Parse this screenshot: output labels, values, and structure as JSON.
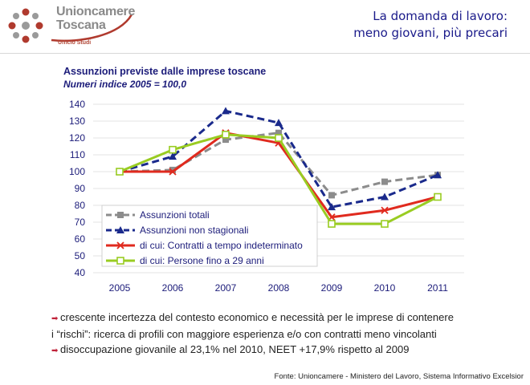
{
  "header": {
    "brand_line1": "Unioncamere",
    "brand_line2": "Toscana",
    "brand_sub": "Ufficio Studi",
    "title_line1": "La domanda di lavoro:",
    "title_line2": "meno giovani, più precari"
  },
  "chart_data": {
    "type": "line",
    "title": "Assunzioni previste dalle imprese toscane",
    "subtitle": "Numeri indice 2005 = 100,0",
    "categories": [
      "2005",
      "2006",
      "2007",
      "2008",
      "2009",
      "2010",
      "2011"
    ],
    "ylim": [
      40,
      140
    ],
    "yticks": [
      140,
      130,
      120,
      110,
      100,
      90,
      80,
      70,
      60,
      50,
      40
    ],
    "xlabel": "",
    "ylabel": "",
    "legend": "bottom-left",
    "series": [
      {
        "name": "Assunzioni totali",
        "values": [
          100,
          101,
          119,
          123,
          86,
          94,
          98
        ],
        "color": "#8c8c8c",
        "dash": "dashed",
        "marker": "square"
      },
      {
        "name": "Assunzioni non stagionali",
        "values": [
          100,
          109,
          136,
          129,
          79,
          85,
          98
        ],
        "color": "#1a2a8c",
        "dash": "dashed",
        "marker": "triangle"
      },
      {
        "name": "di cui: Contratti a tempo indeterminato",
        "values": [
          100,
          100,
          123,
          117,
          73,
          77,
          85
        ],
        "color": "#e02a1e",
        "dash": "solid",
        "marker": "x"
      },
      {
        "name": "di cui: Persone fino a 29 anni",
        "values": [
          100,
          113,
          122,
          120,
          69,
          69,
          85
        ],
        "color": "#99cc22",
        "dash": "solid",
        "marker": "square-open"
      }
    ]
  },
  "notes": [
    "crescente incertezza del contesto economico e necessità per le imprese di contenere",
    "i “rischi”: ricerca di profili con maggiore esperienza e/o con contratti meno vincolanti",
    "disoccupazione giovanile al 23,1% nel 2010, NEET +17,9% rispetto al 2009"
  ],
  "source": "Fonte: Unioncamere - Ministero del Lavoro, Sistema Informativo Excelsior"
}
